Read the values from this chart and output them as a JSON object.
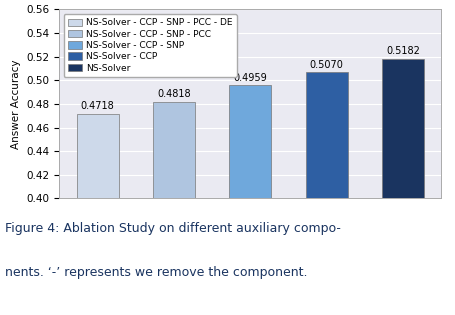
{
  "categories": [
    "NS-Solver - CCP - SNP - PCC - DE",
    "NS-Solver - CCP - SNP - PCC",
    "NS-Solver - CCP - SNP",
    "NS-Solver - CCP",
    "NS-Solver"
  ],
  "values": [
    0.4718,
    0.4818,
    0.4959,
    0.507,
    0.5182
  ],
  "bar_colors": [
    "#cdd9ea",
    "#afc5e0",
    "#6fa8dc",
    "#2e5fa3",
    "#1a3460"
  ],
  "ylabel": "Answer Accuracy",
  "ylim": [
    0.4,
    0.56
  ],
  "yticks": [
    0.4,
    0.42,
    0.44,
    0.46,
    0.48,
    0.5,
    0.52,
    0.54,
    0.56
  ],
  "caption_line1": "Figure 4: Ablation Study on different auxiliary compo-",
  "caption_line2": "nents. ‘-’ represents we remove the component.",
  "bar_width": 0.55,
  "edgecolor": "#777777",
  "label_fontsize": 7.5,
  "tick_fontsize": 7.5,
  "legend_fontsize": 6.5,
  "value_fontsize": 7.0,
  "caption_fontsize": 9.0,
  "caption_color": "#1a3460"
}
